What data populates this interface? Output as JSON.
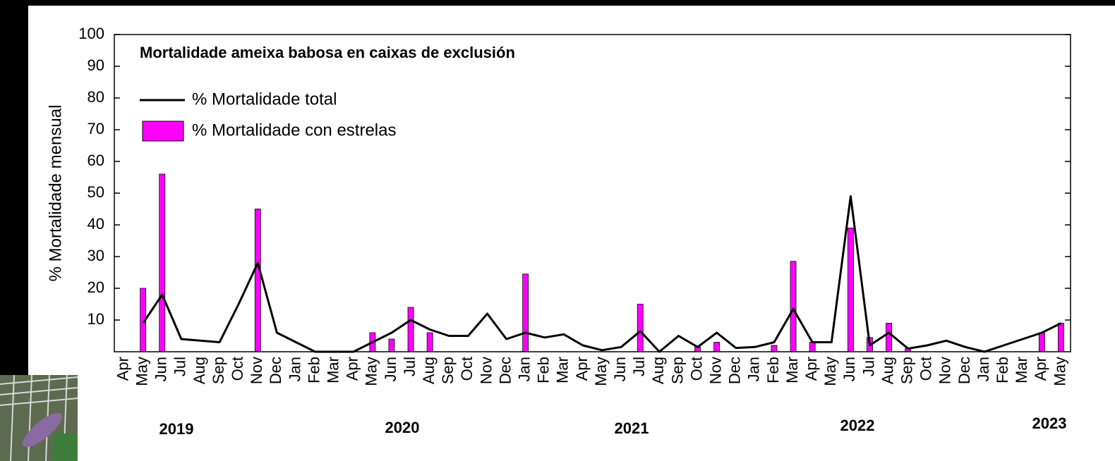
{
  "chart_data": {
    "type": "bar",
    "title": "Mortalidade ameixa babosa en caixas de exclusión",
    "y_label": "% Mortalidade mensual",
    "categories": [
      "Apr",
      "May",
      "Jun",
      "Jul",
      "Aug",
      "Sep",
      "Oct",
      "Nov",
      "Dec",
      "Jan",
      "Feb",
      "Mar",
      "Apr",
      "May",
      "Jun",
      "Jul",
      "Aug",
      "Sep",
      "Oct",
      "Nov",
      "Dec",
      "Jan",
      "Feb",
      "Mar",
      "Apr",
      "May",
      "Jun",
      "Jul",
      "Aug",
      "Sep",
      "Oct",
      "Nov",
      "Dec",
      "Jan",
      "Feb",
      "Mar",
      "Apr",
      "May",
      "Jun",
      "Jul",
      "Aug",
      "Sep",
      "Oct",
      "Nov",
      "Dec",
      "Jan",
      "Feb",
      "Mar",
      "Apr",
      "May"
    ],
    "year_labels": [
      "2019",
      "2020",
      "2021",
      "2022",
      "2023"
    ],
    "series": [
      {
        "name": "% Mortalidade total",
        "type": "line",
        "color": "#000000",
        "values": [
          null,
          9,
          18,
          4,
          3.5,
          3,
          15,
          28,
          6,
          3,
          0,
          0,
          0,
          3,
          6,
          10,
          7,
          5,
          5,
          12,
          4,
          6,
          4.5,
          5.5,
          2,
          0.5,
          1.5,
          6.5,
          0,
          5,
          1.5,
          6,
          1.2,
          1.5,
          3,
          13.5,
          3,
          3,
          49,
          2,
          6,
          1,
          2,
          3.5,
          1.5,
          0,
          2,
          4,
          6,
          9
        ]
      },
      {
        "name": "% Mortalidade con estrelas",
        "type": "bar",
        "color": "#ff00ff",
        "values": [
          null,
          20,
          56,
          null,
          null,
          null,
          null,
          45,
          null,
          null,
          null,
          null,
          null,
          6,
          4,
          14,
          6,
          null,
          null,
          null,
          null,
          24.5,
          null,
          null,
          null,
          null,
          null,
          15,
          null,
          null,
          1.5,
          3,
          null,
          null,
          2,
          28.5,
          3,
          null,
          39,
          4.5,
          9,
          1,
          null,
          null,
          null,
          null,
          null,
          null,
          6,
          9
        ]
      }
    ],
    "ylim": [
      0,
      100
    ],
    "yticks": [
      10,
      20,
      30,
      40,
      50,
      60,
      70,
      80,
      90,
      100
    ]
  }
}
